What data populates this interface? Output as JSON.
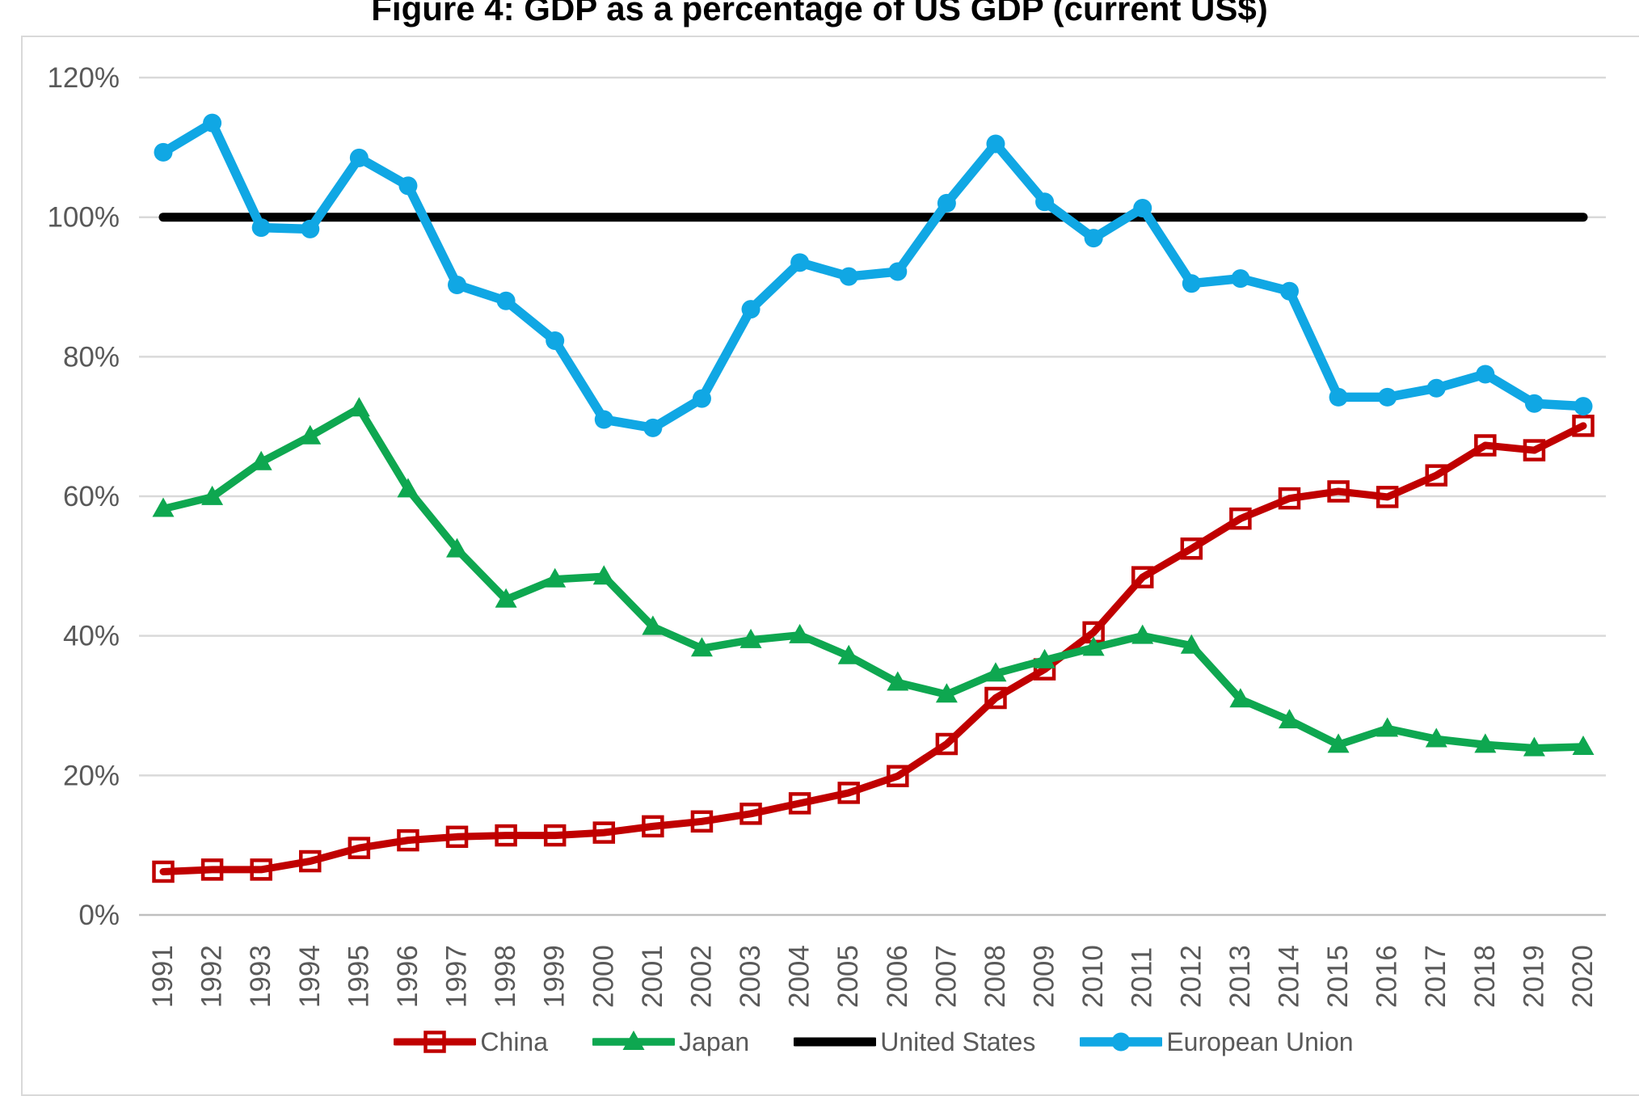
{
  "chart_data": {
    "type": "line",
    "title": "Figure 4: GDP as a percentage of US GDP (current US$)",
    "xlabel": "",
    "ylabel": "",
    "x": [
      1991,
      1992,
      1993,
      1994,
      1995,
      1996,
      1997,
      1998,
      1999,
      2000,
      2001,
      2002,
      2003,
      2004,
      2005,
      2006,
      2007,
      2008,
      2009,
      2010,
      2011,
      2012,
      2013,
      2014,
      2015,
      2016,
      2017,
      2018,
      2019,
      2020
    ],
    "ylim": [
      0,
      120
    ],
    "ytick_step": 20,
    "ytick_labels": [
      "0%",
      "20%",
      "40%",
      "60%",
      "80%",
      "100%",
      "120%"
    ],
    "grid": true,
    "legend_position": "bottom",
    "series": [
      {
        "name": "China",
        "color": "#C00000",
        "marker": "open-square",
        "values": [
          6.2,
          6.5,
          6.5,
          7.7,
          9.6,
          10.7,
          11.2,
          11.4,
          11.4,
          11.8,
          12.7,
          13.4,
          14.5,
          16.0,
          17.5,
          19.9,
          24.5,
          31.1,
          35.2,
          40.5,
          48.4,
          52.5,
          56.8,
          59.7,
          60.7,
          59.9,
          63.0,
          67.3,
          66.6,
          70.1
        ]
      },
      {
        "name": "Japan",
        "color": "#0EA750",
        "marker": "triangle",
        "values": [
          58.2,
          59.9,
          64.9,
          68.6,
          72.6,
          61.0,
          52.4,
          45.2,
          48.1,
          48.5,
          41.3,
          38.2,
          39.4,
          40.1,
          37.1,
          33.3,
          31.6,
          34.6,
          36.5,
          38.3,
          40.0,
          38.6,
          30.9,
          27.9,
          24.4,
          26.7,
          25.2,
          24.4,
          23.9,
          24.1
        ]
      },
      {
        "name": "United States",
        "color": "#000000",
        "marker": "none",
        "values": [
          100,
          100,
          100,
          100,
          100,
          100,
          100,
          100,
          100,
          100,
          100,
          100,
          100,
          100,
          100,
          100,
          100,
          100,
          100,
          100,
          100,
          100,
          100,
          100,
          100,
          100,
          100,
          100,
          100,
          100
        ]
      },
      {
        "name": "European Union",
        "color": "#10A7E4",
        "marker": "circle",
        "values": [
          109.3,
          113.5,
          98.5,
          98.3,
          108.5,
          104.5,
          90.3,
          88.0,
          82.3,
          71.0,
          69.8,
          74.0,
          86.8,
          93.5,
          91.5,
          92.2,
          102.0,
          110.5,
          102.2,
          97.0,
          101.3,
          90.5,
          91.2,
          89.4,
          74.2,
          74.2,
          75.5,
          77.5,
          73.3,
          72.9
        ]
      }
    ],
    "colors": {
      "gridline": "#D9D9D9",
      "axis_line": "#BFBFBF",
      "tick_label": "#595959",
      "frame_border": "#D9D9D9",
      "background": "#ffffff"
    }
  }
}
